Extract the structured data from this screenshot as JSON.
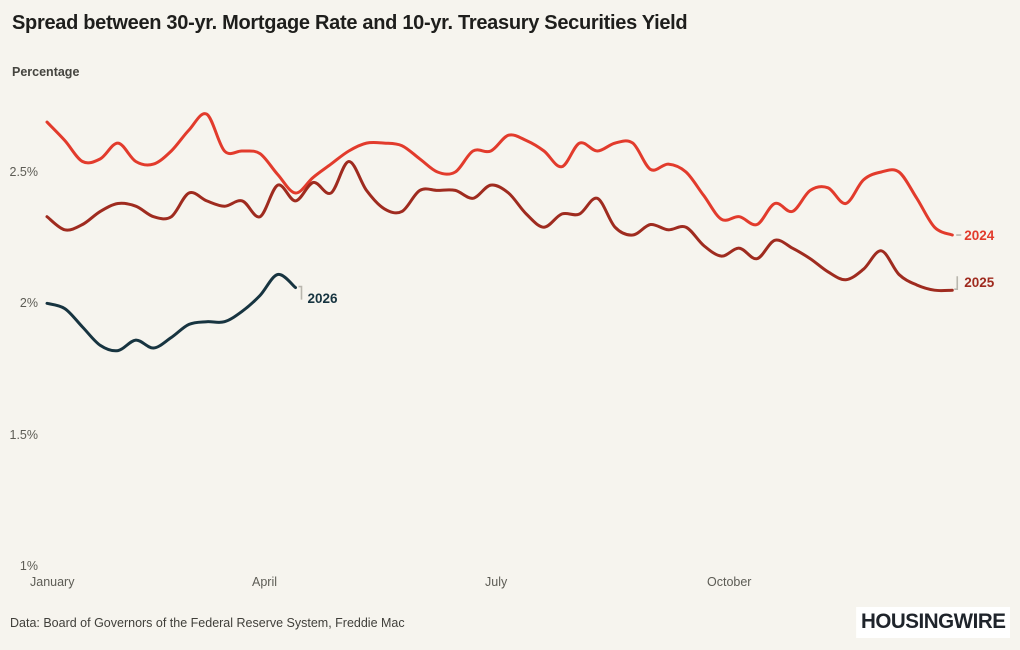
{
  "header": {
    "title": "Spread between 30-yr. Mortgage Rate and 10-yr. Treasury Securities Yield",
    "subtitle": "Percentage"
  },
  "footer": {
    "source": "Data: Board of Governors of the Federal Reserve System, Freddie Mac",
    "logo": "HOUSINGWIRE"
  },
  "colors": {
    "background": "#f6f4ee",
    "title_text": "#1e1e1c",
    "axis_text": "#5d5c55",
    "tick_mark": "#b9b6ae",
    "series_2024": "#e23b2c",
    "series_2025": "#9f2b1f",
    "series_2026": "#173440"
  },
  "chart_data": {
    "type": "line",
    "title": "Spread between 30-yr. Mortgage Rate and 10-yr. Treasury Securities Yield",
    "ylabel": "Percentage",
    "xlabel": "",
    "unit": "%",
    "grid": false,
    "legend_position": "inline-end-of-line",
    "x_granularity": "weekly",
    "x_tick_labels": [
      "January",
      "April",
      "July",
      "October"
    ],
    "y_ticks": [
      {
        "label": "2.5%",
        "value": 2.5
      },
      {
        "label": "2%",
        "value": 2.0
      },
      {
        "label": "1.5%",
        "value": 1.5
      },
      {
        "label": "1%",
        "value": 1.0
      }
    ],
    "y_range": [
      1.0,
      2.78
    ],
    "series": [
      {
        "name": "2024",
        "color": "#e23b2c",
        "label_dy": 0,
        "tick_style": "dash",
        "values": [
          2.69,
          2.62,
          2.54,
          2.55,
          2.61,
          2.54,
          2.53,
          2.58,
          2.66,
          2.72,
          2.58,
          2.58,
          2.57,
          2.49,
          2.42,
          2.48,
          2.53,
          2.58,
          2.61,
          2.61,
          2.6,
          2.55,
          2.5,
          2.5,
          2.58,
          2.58,
          2.64,
          2.62,
          2.58,
          2.52,
          2.61,
          2.58,
          2.61,
          2.61,
          2.51,
          2.53,
          2.5,
          2.41,
          2.32,
          2.33,
          2.3,
          2.38,
          2.35,
          2.43,
          2.44,
          2.38,
          2.47,
          2.5,
          2.5,
          2.4,
          2.29,
          2.26
        ]
      },
      {
        "name": "2025",
        "color": "#9f2b1f",
        "label_dy": -8,
        "tick_style": "bracket-up",
        "values": [
          2.33,
          2.28,
          2.3,
          2.35,
          2.38,
          2.37,
          2.33,
          2.33,
          2.42,
          2.39,
          2.37,
          2.39,
          2.33,
          2.45,
          2.39,
          2.46,
          2.42,
          2.54,
          2.43,
          2.36,
          2.35,
          2.43,
          2.43,
          2.43,
          2.4,
          2.45,
          2.42,
          2.34,
          2.29,
          2.34,
          2.34,
          2.4,
          2.29,
          2.26,
          2.3,
          2.28,
          2.29,
          2.22,
          2.18,
          2.21,
          2.17,
          2.24,
          2.21,
          2.17,
          2.12,
          2.09,
          2.13,
          2.2,
          2.11,
          2.07,
          2.05,
          2.05
        ]
      },
      {
        "name": "2026",
        "color": "#173440",
        "label_dy": 11,
        "tick_style": "bracket-down",
        "values": [
          2.0,
          1.98,
          1.91,
          1.84,
          1.82,
          1.86,
          1.83,
          1.87,
          1.92,
          1.93,
          1.93,
          1.97,
          2.03,
          2.11,
          2.06
        ]
      }
    ]
  }
}
